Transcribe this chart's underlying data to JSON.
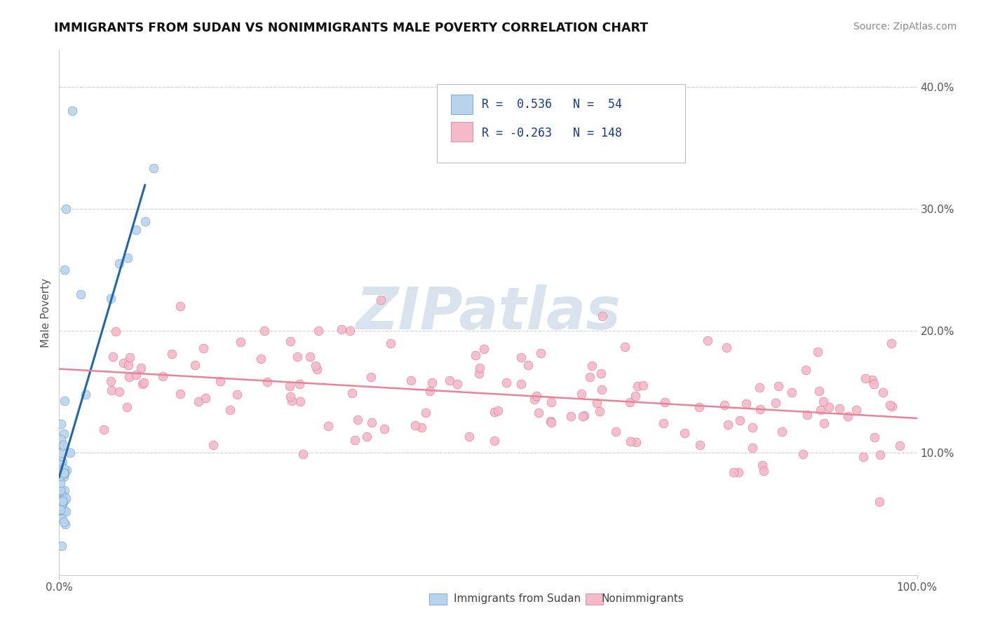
{
  "title": "IMMIGRANTS FROM SUDAN VS NONIMMIGRANTS MALE POVERTY CORRELATION CHART",
  "source": "Source: ZipAtlas.com",
  "ylabel": "Male Poverty",
  "xlim": [
    0,
    1
  ],
  "ylim": [
    0,
    0.43
  ],
  "yticks_right": [
    0.1,
    0.2,
    0.3,
    0.4
  ],
  "ytick_labels_right": [
    "10.0%",
    "20.0%",
    "30.0%",
    "40.0%"
  ],
  "xticks": [
    0.0,
    1.0
  ],
  "xtick_labels": [
    "0.0%",
    "100.0%"
  ],
  "legend_label1": "Immigrants from Sudan",
  "legend_label2": "Nonimmigrants",
  "R1": 0.536,
  "N1": 54,
  "R2": -0.263,
  "N2": 148,
  "color_blue": "#b8d4ed",
  "color_pink": "#f5b8c8",
  "trendline_blue": "#2166ac",
  "trendline_pink": "#e8849a",
  "watermark": "ZIPatlas",
  "watermark_color": "#c8d8e8",
  "grid_color": "#d0d0d0"
}
